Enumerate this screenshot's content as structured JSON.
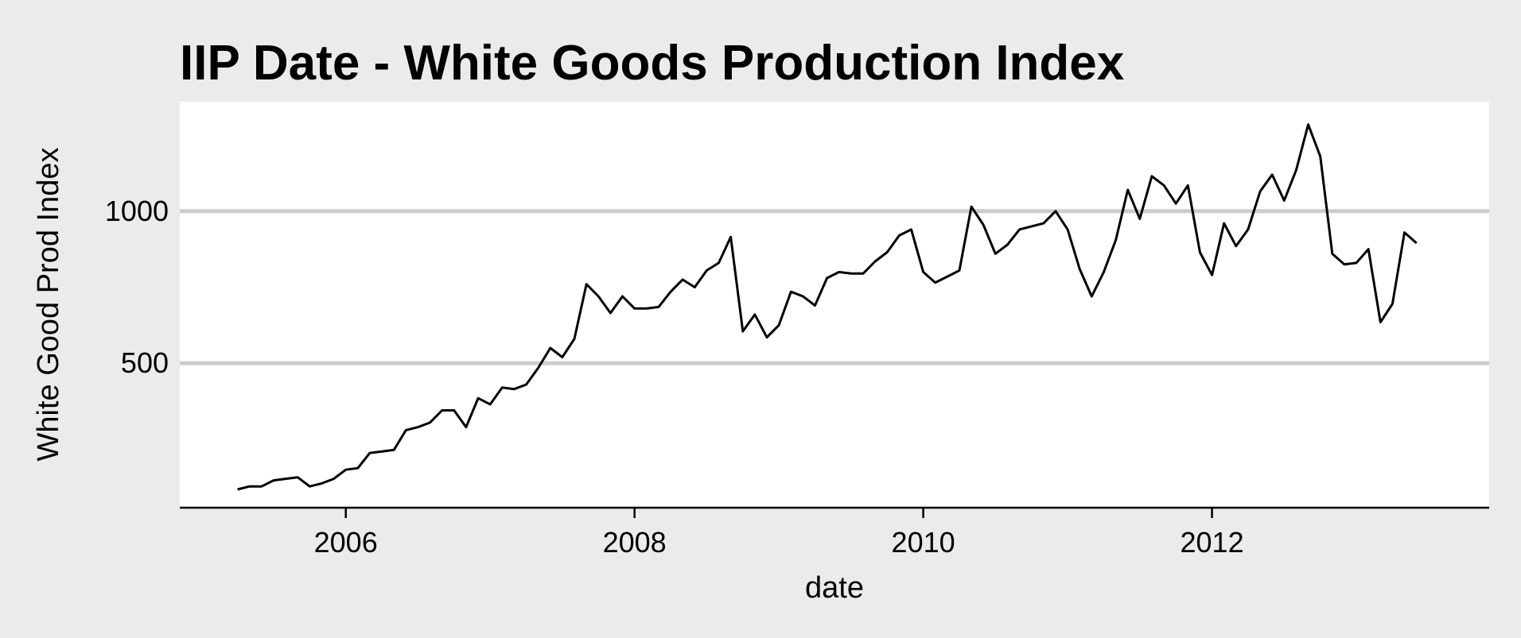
{
  "chart_data": {
    "type": "line",
    "title": "IIP Date - White Goods Production Index",
    "xlabel": "date",
    "ylabel": "White Good Prod Index",
    "xlim": [
      2004.85,
      2013.92
    ],
    "ylim": [
      25,
      1360
    ],
    "x_ticks": [
      {
        "value": 2006,
        "label": "2006"
      },
      {
        "value": 2008,
        "label": "2008"
      },
      {
        "value": 2010,
        "label": "2010"
      },
      {
        "value": 2012,
        "label": "2012"
      }
    ],
    "y_ticks": [
      {
        "value": 500,
        "label": "500"
      },
      {
        "value": 1000,
        "label": "1000"
      }
    ],
    "grid": "horizontal",
    "legend": "none",
    "colors": {
      "background": "#ebebeb",
      "panel": "#ffffff",
      "grid": "#cccccc",
      "line": "#000000"
    },
    "series": [
      {
        "x_start": "2005-04",
        "frequency": "monthly",
        "values": [
          85,
          95,
          95,
          115,
          120,
          125,
          95,
          105,
          120,
          150,
          155,
          205,
          210,
          215,
          280,
          290,
          305,
          345,
          345,
          290,
          385,
          365,
          420,
          415,
          430,
          485,
          550,
          520,
          580,
          760,
          720,
          665,
          720,
          680,
          680,
          685,
          735,
          775,
          750,
          805,
          830,
          915,
          605,
          660,
          585,
          625,
          735,
          720,
          690,
          780,
          800,
          795,
          795,
          835,
          865,
          920,
          940,
          800,
          765,
          785,
          805,
          1015,
          955,
          860,
          890,
          940,
          950,
          960,
          1000,
          940,
          810,
          720,
          800,
          905,
          1070,
          975,
          1115,
          1085,
          1025,
          1085,
          865,
          790,
          960,
          885,
          940,
          1065,
          1120,
          1035,
          1135,
          1285,
          1180,
          860,
          825,
          830,
          875,
          635,
          695,
          930,
          895
        ]
      }
    ]
  }
}
